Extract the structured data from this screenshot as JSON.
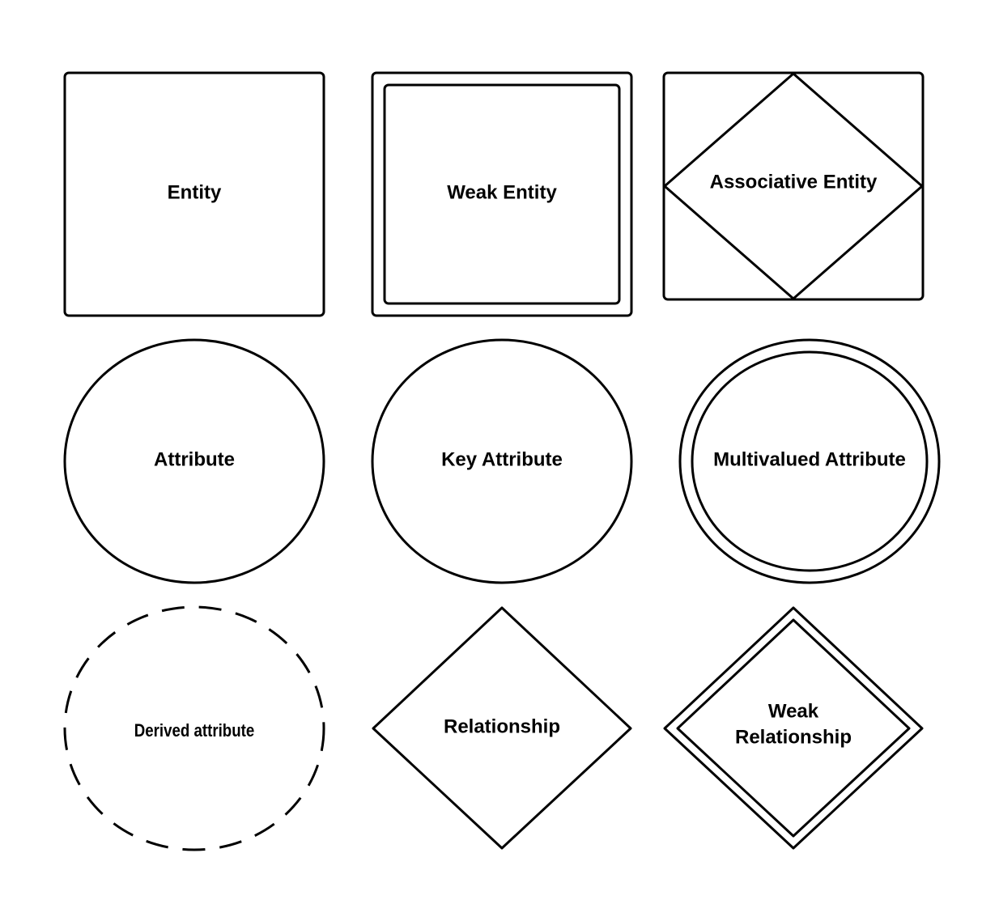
{
  "diagram": {
    "shapes": {
      "entity": {
        "label": "Entity"
      },
      "weak_entity": {
        "label": "Weak Entity"
      },
      "associative_entity": {
        "label": "Associative Entity"
      },
      "attribute": {
        "label": "Attribute"
      },
      "key_attribute": {
        "label": "Key Attribute"
      },
      "multivalued_attribute": {
        "label": "Multivalued Attribute"
      },
      "derived_attribute": {
        "label": "Derived attribute"
      },
      "relationship": {
        "label": "Relationship"
      },
      "weak_relationship": {
        "label_line1": "Weak",
        "label_line2": "Relationship"
      }
    }
  }
}
